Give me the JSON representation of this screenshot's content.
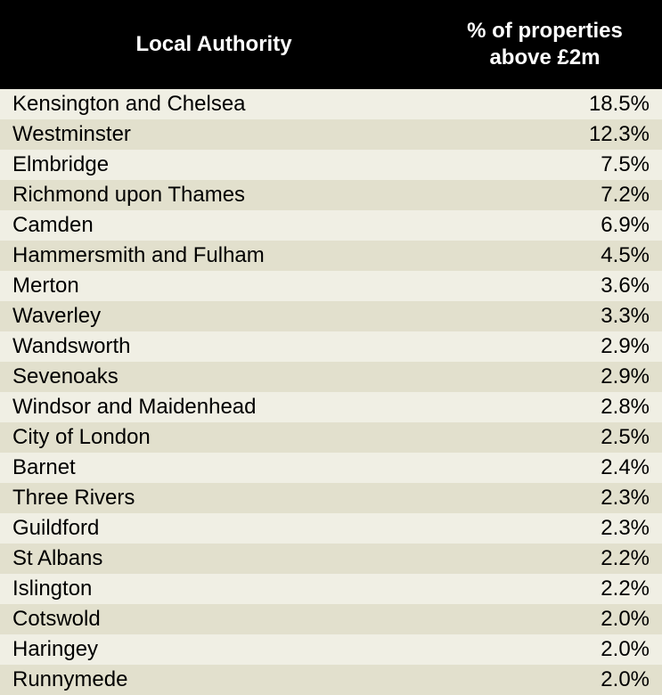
{
  "chart_data": {
    "type": "table",
    "columns": [
      "Local Authority",
      "% of properties above £2m"
    ],
    "header": {
      "col1": "Local Authority",
      "col2_line1": "% of properties",
      "col2_line2": "above £2m"
    },
    "rows": [
      {
        "name": "Kensington and Chelsea",
        "value": "18.5%"
      },
      {
        "name": "Westminster",
        "value": "12.3%"
      },
      {
        "name": "Elmbridge",
        "value": "7.5%"
      },
      {
        "name": "Richmond upon Thames",
        "value": "7.2%"
      },
      {
        "name": "Camden",
        "value": "6.9%"
      },
      {
        "name": "Hammersmith and Fulham",
        "value": "4.5%"
      },
      {
        "name": "Merton",
        "value": "3.6%"
      },
      {
        "name": "Waverley",
        "value": "3.3%"
      },
      {
        "name": "Wandsworth",
        "value": "2.9%"
      },
      {
        "name": "Sevenoaks",
        "value": "2.9%"
      },
      {
        "name": "Windsor and Maidenhead",
        "value": "2.8%"
      },
      {
        "name": "City of London",
        "value": "2.5%"
      },
      {
        "name": "Barnet",
        "value": "2.4%"
      },
      {
        "name": "Three Rivers",
        "value": "2.3%"
      },
      {
        "name": "Guildford",
        "value": "2.3%"
      },
      {
        "name": "St Albans",
        "value": "2.2%"
      },
      {
        "name": "Islington",
        "value": "2.2%"
      },
      {
        "name": "Cotswold",
        "value": "2.0%"
      },
      {
        "name": "Haringey",
        "value": "2.0%"
      },
      {
        "name": "Runnymede",
        "value": "2.0%"
      }
    ]
  },
  "colors": {
    "header_bg": "#000000",
    "header_text": "#ffffff",
    "row_light": "#f0efe4",
    "row_dark": "#e2e0cd"
  }
}
